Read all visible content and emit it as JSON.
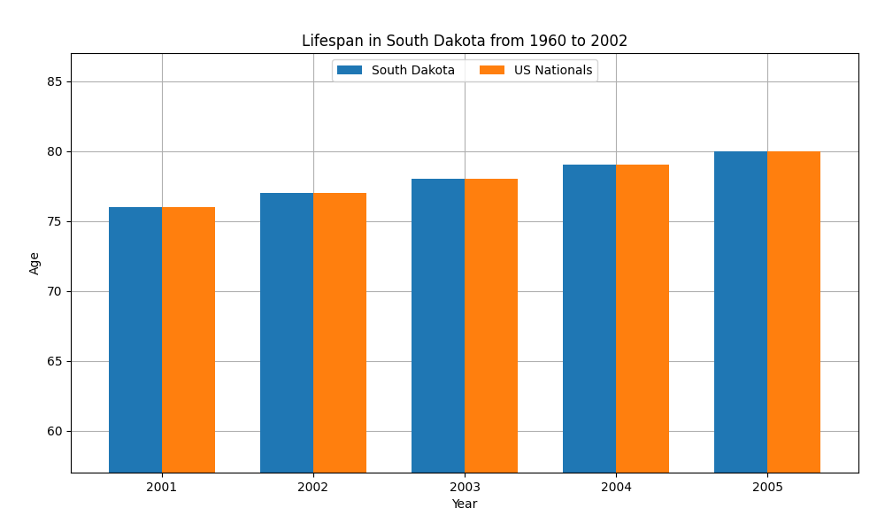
{
  "chart_data": {
    "type": "bar",
    "title": "Lifespan in South Dakota from 1960 to 2002",
    "x_label": "Year",
    "y_label": "Age",
    "categories": [
      "2001",
      "2002",
      "2003",
      "2004",
      "2005"
    ],
    "series": [
      {
        "name": "South Dakota",
        "values": [
          76,
          77,
          78,
          79,
          80
        ]
      },
      {
        "name": "US Nationals",
        "values": [
          76,
          77,
          78,
          79,
          80
        ]
      }
    ],
    "ylim": [
      57,
      87
    ],
    "yticks": [
      60,
      65,
      70,
      75,
      80,
      85
    ],
    "grid": true,
    "legend": "upper center"
  }
}
